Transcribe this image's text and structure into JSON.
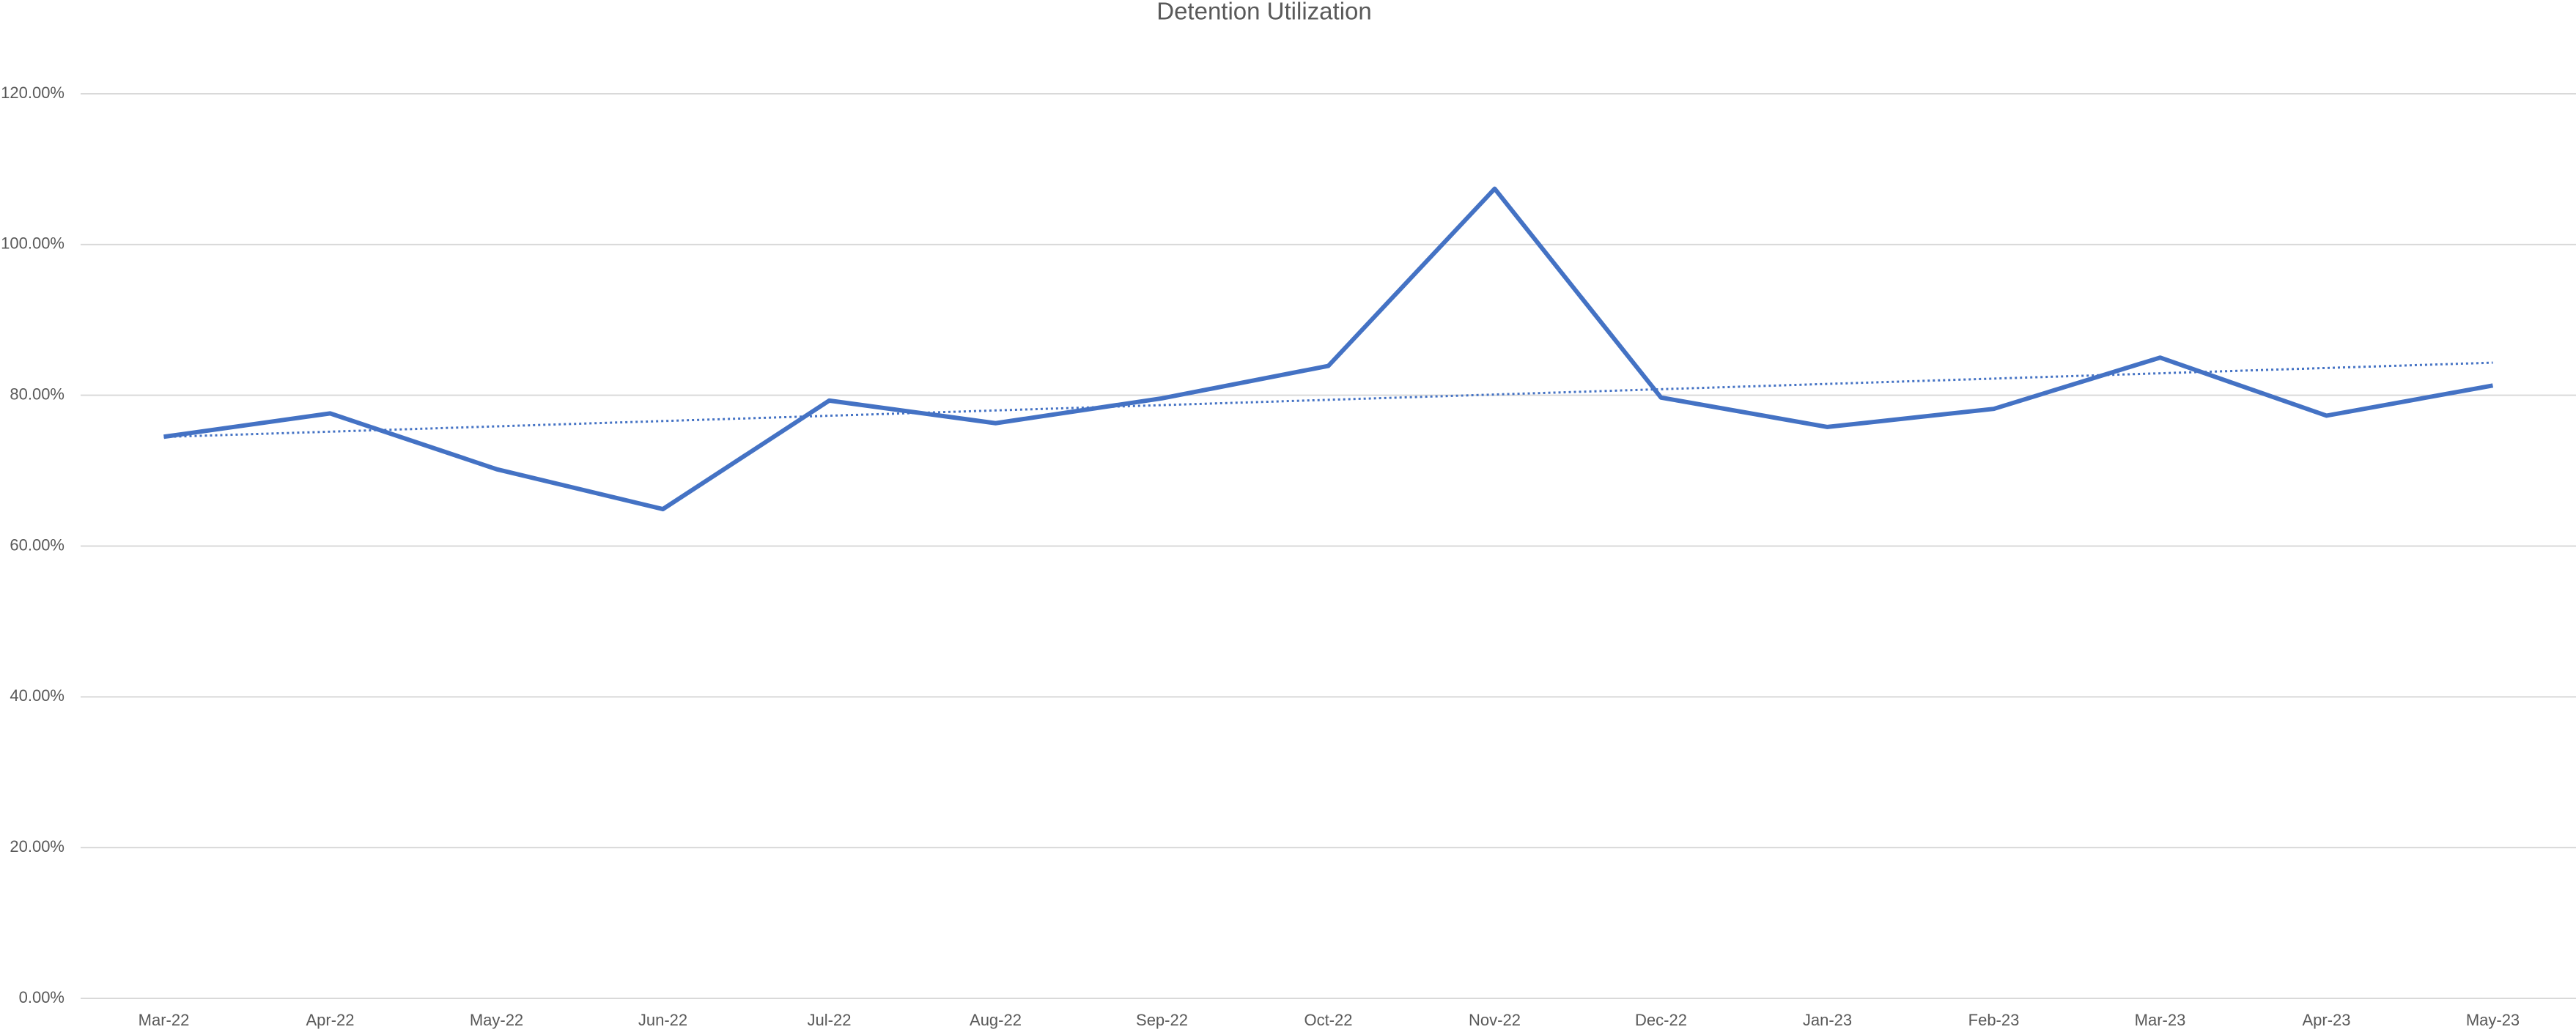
{
  "chart_data": {
    "type": "line",
    "title": "Detention Utilization",
    "categories": [
      "Mar-22",
      "Apr-22",
      "May-22",
      "Jun-22",
      "Jul-22",
      "Aug-22",
      "Sep-22",
      "Oct-22",
      "Nov-22",
      "Dec-22",
      "Jan-23",
      "Feb-23",
      "Mar-23",
      "Apr-23",
      "May-23"
    ],
    "values": [
      74.5,
      77.6,
      70.2,
      64.9,
      79.3,
      76.3,
      79.6,
      83.9,
      107.4,
      79.7,
      75.8,
      78.2,
      85.0,
      77.3,
      81.3
    ],
    "color": "#4472c4",
    "trendline": "linear",
    "ylim": [
      0,
      120
    ],
    "yticks": [
      {
        "value": 0,
        "label": "0.00%"
      },
      {
        "value": 20,
        "label": "20.00%"
      },
      {
        "value": 40,
        "label": "40.00%"
      },
      {
        "value": 60,
        "label": "60.00%"
      },
      {
        "value": 80,
        "label": "80.00%"
      },
      {
        "value": 100,
        "label": "100.00%"
      },
      {
        "value": 120,
        "label": "120.00%"
      }
    ],
    "grid": true
  }
}
